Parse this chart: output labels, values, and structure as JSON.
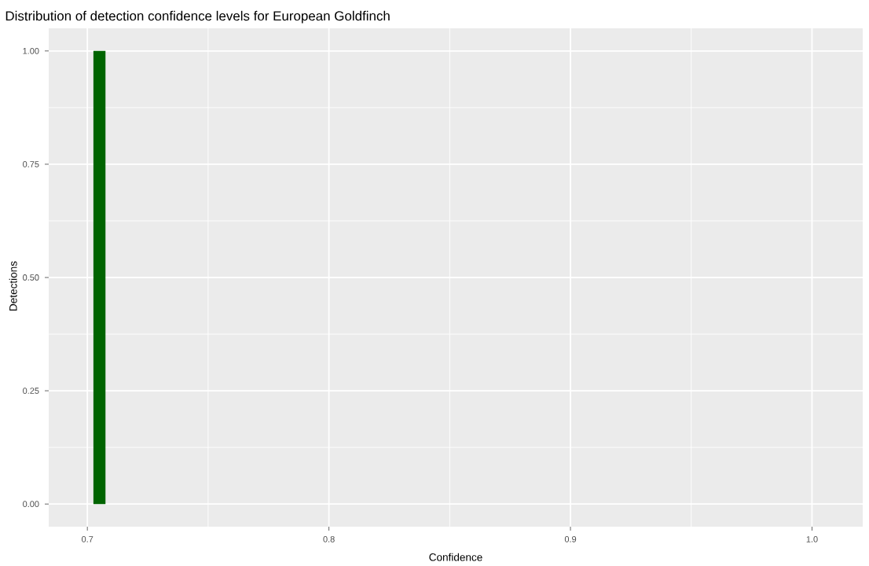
{
  "chart_data": {
    "type": "histogram",
    "title": "Distribution of detection confidence levels for European Goldfinch",
    "xlabel": "Confidence",
    "ylabel": "Detections",
    "bins": [
      0.7025,
      0.7075
    ],
    "values": [
      1
    ],
    "color": "#006400",
    "xlim": [
      0.684,
      1.021
    ],
    "xticks": [
      0.7,
      0.8,
      0.9,
      {
        "value": 1,
        "label": "1.0"
      }
    ],
    "ylim": [
      -0.05,
      1.05
    ],
    "yticks": [
      {
        "value": 0,
        "label": "0.00"
      },
      {
        "value": 0.25,
        "label": "0.25"
      },
      {
        "value": 0.5,
        "label": "0.50"
      },
      {
        "value": 0.75,
        "label": "0.75"
      },
      {
        "value": 1,
        "label": "1.00"
      }
    ],
    "grid": true
  }
}
